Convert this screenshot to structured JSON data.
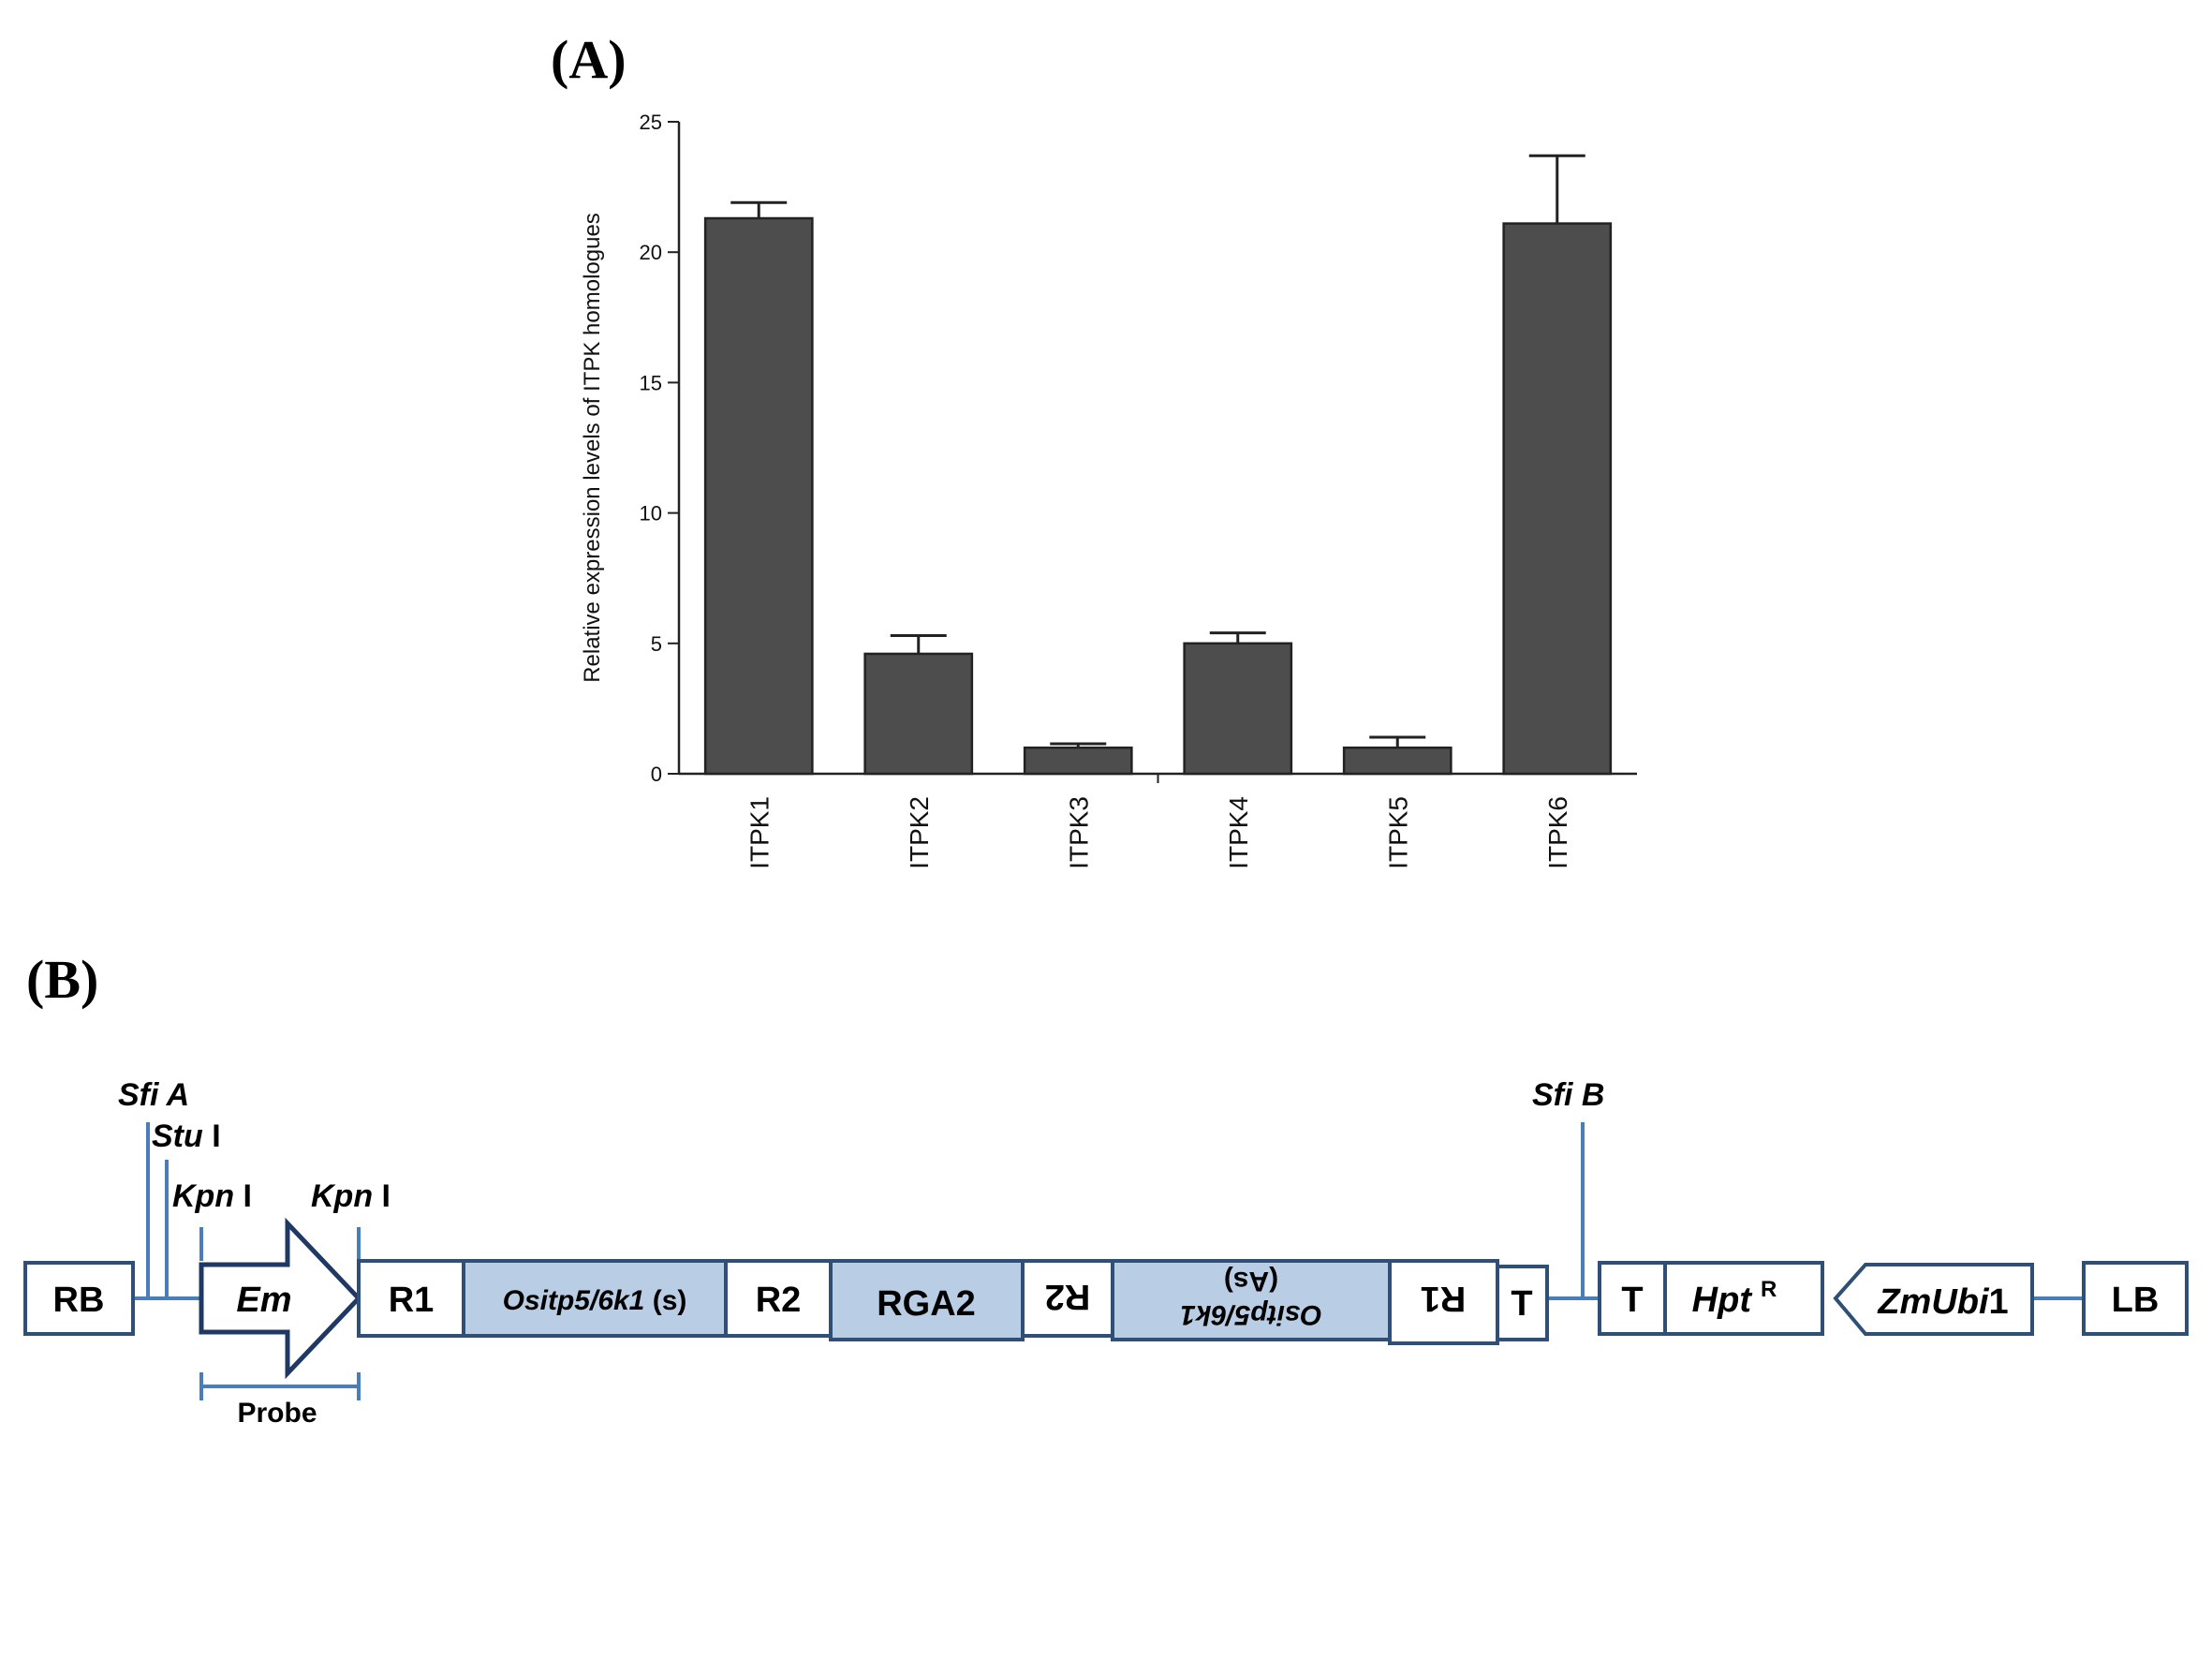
{
  "panels": {
    "a_label": "(A)",
    "b_label": "(B)"
  },
  "chart_data": {
    "type": "bar",
    "title": "",
    "xlabel": "",
    "ylabel": "Relative expression levels of ITPK homologues",
    "ylim": [
      0,
      25
    ],
    "yticks": [
      "0",
      "5",
      "10",
      "15",
      "20",
      "25"
    ],
    "categories": [
      "ITPK1",
      "ITPK2",
      "ITPK3",
      "ITPK4",
      "ITPK5",
      "ITPK6"
    ],
    "values": [
      21.3,
      4.6,
      1.0,
      5.0,
      1.0,
      21.1
    ],
    "errors": [
      0.6,
      0.7,
      0.15,
      0.4,
      0.4,
      2.6
    ],
    "bar_color": "#4d4d4d",
    "grid": false
  },
  "construct": {
    "sites": {
      "sfi_a": {
        "name": "Sfi A",
        "suffix": ""
      },
      "stu": {
        "name": "Stu",
        "suffix": " I"
      },
      "kpn1": {
        "name": "Kpn",
        "suffix": " I"
      },
      "kpn2": {
        "name": "Kpn",
        "suffix": " I"
      },
      "sfi_b": {
        "name": "Sfi B",
        "suffix": ""
      }
    },
    "elements": {
      "rb": "RB",
      "em": "Em",
      "r1": "R1",
      "ositp_s_name": "Ositp5/6k1",
      "ositp_s_suffix": " (s)",
      "r2": "R2",
      "rga2": "RGA2",
      "r2_inv": "R2",
      "ositp_as_name": "Ositp5/6k1",
      "ositp_as_suffix": "(As)",
      "r1_inv": "R1",
      "t1": "T",
      "t2": "T",
      "hpt_name": "Hpt",
      "hpt_sup": "R",
      "zmubi_name": "ZmUbi",
      "zmubi_num": "1",
      "lb": "LB"
    },
    "probe": "Probe",
    "colors": {
      "line": "#4a7ebb",
      "fill": "#b9cde5",
      "outline": "#2f4f77",
      "em_outline": "#1f3864"
    }
  }
}
